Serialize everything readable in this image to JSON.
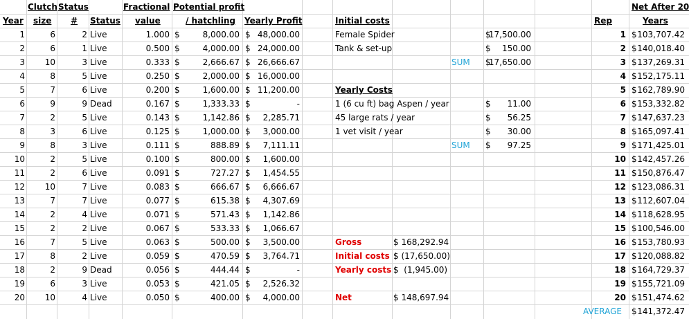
{
  "headers": {
    "year": "Year",
    "clutch_size_1": "Clutch",
    "clutch_size_2": "size",
    "status_num_1": "Status",
    "status_num_2": "#",
    "status": "Status",
    "fractional_1": "Fractional",
    "fractional_2": "value",
    "potential_1": "Potential profit",
    "potential_2": "/ hatchling",
    "yearly_profit": "Yearly Profit",
    "rep": "Rep",
    "net_1": "Net After 20",
    "net_2": "Years"
  },
  "rows": [
    {
      "year": "1",
      "clutch": "6",
      "num": "2",
      "status": "Live",
      "frac": "1.000",
      "pot": "8,000.00",
      "yp": "48,000.00"
    },
    {
      "year": "2",
      "clutch": "6",
      "num": "1",
      "status": "Live",
      "frac": "0.500",
      "pot": "4,000.00",
      "yp": "24,000.00"
    },
    {
      "year": "3",
      "clutch": "10",
      "num": "3",
      "status": "Live",
      "frac": "0.333",
      "pot": "2,666.67",
      "yp": "26,666.67"
    },
    {
      "year": "4",
      "clutch": "8",
      "num": "5",
      "status": "Live",
      "frac": "0.250",
      "pot": "2,000.00",
      "yp": "16,000.00"
    },
    {
      "year": "5",
      "clutch": "7",
      "num": "6",
      "status": "Live",
      "frac": "0.200",
      "pot": "1,600.00",
      "yp": "11,200.00"
    },
    {
      "year": "6",
      "clutch": "9",
      "num": "9",
      "status": "Dead",
      "frac": "0.167",
      "pot": "1,333.33",
      "yp": "-"
    },
    {
      "year": "7",
      "clutch": "2",
      "num": "5",
      "status": "Live",
      "frac": "0.143",
      "pot": "1,142.86",
      "yp": "2,285.71"
    },
    {
      "year": "8",
      "clutch": "3",
      "num": "6",
      "status": "Live",
      "frac": "0.125",
      "pot": "1,000.00",
      "yp": "3,000.00"
    },
    {
      "year": "9",
      "clutch": "8",
      "num": "3",
      "status": "Live",
      "frac": "0.111",
      "pot": "888.89",
      "yp": "7,111.11"
    },
    {
      "year": "10",
      "clutch": "2",
      "num": "5",
      "status": "Live",
      "frac": "0.100",
      "pot": "800.00",
      "yp": "1,600.00"
    },
    {
      "year": "11",
      "clutch": "2",
      "num": "6",
      "status": "Live",
      "frac": "0.091",
      "pot": "727.27",
      "yp": "1,454.55"
    },
    {
      "year": "12",
      "clutch": "10",
      "num": "7",
      "status": "Live",
      "frac": "0.083",
      "pot": "666.67",
      "yp": "6,666.67"
    },
    {
      "year": "13",
      "clutch": "7",
      "num": "7",
      "status": "Live",
      "frac": "0.077",
      "pot": "615.38",
      "yp": "4,307.69"
    },
    {
      "year": "14",
      "clutch": "2",
      "num": "4",
      "status": "Live",
      "frac": "0.071",
      "pot": "571.43",
      "yp": "1,142.86"
    },
    {
      "year": "15",
      "clutch": "2",
      "num": "2",
      "status": "Live",
      "frac": "0.067",
      "pot": "533.33",
      "yp": "1,066.67"
    },
    {
      "year": "16",
      "clutch": "7",
      "num": "5",
      "status": "Live",
      "frac": "0.063",
      "pot": "500.00",
      "yp": "3,500.00"
    },
    {
      "year": "17",
      "clutch": "8",
      "num": "2",
      "status": "Live",
      "frac": "0.059",
      "pot": "470.59",
      "yp": "3,764.71"
    },
    {
      "year": "18",
      "clutch": "2",
      "num": "9",
      "status": "Dead",
      "frac": "0.056",
      "pot": "444.44",
      "yp": "-"
    },
    {
      "year": "19",
      "clutch": "6",
      "num": "3",
      "status": "Live",
      "frac": "0.053",
      "pot": "421.05",
      "yp": "2,526.32"
    },
    {
      "year": "20",
      "clutch": "10",
      "num": "4",
      "status": "Live",
      "frac": "0.050",
      "pot": "400.00",
      "yp": "4,000.00"
    }
  ],
  "currency": "$",
  "initial_costs": {
    "title": "Initial costs",
    "items": [
      {
        "label": "Female Spider",
        "dollar": "$",
        "amount": "17,500.00"
      },
      {
        "label": "Tank & set-up",
        "dollar": "$",
        "amount": "150.00"
      }
    ],
    "sum_label": "SUM",
    "sum_dollar": "$",
    "sum_amount": "17,650.00"
  },
  "yearly_costs": {
    "title": "Yearly Costs",
    "items": [
      {
        "label": "1 (6 cu ft) bag Aspen / year",
        "dollar": "$",
        "amount": "11.00"
      },
      {
        "label": "45 large rats / year",
        "dollar": "$",
        "amount": "56.25"
      },
      {
        "label": "1 vet visit / year",
        "dollar": "$",
        "amount": "30.00"
      }
    ],
    "sum_label": "SUM",
    "sum_dollar": "$",
    "sum_amount": "97.25"
  },
  "summary": {
    "gross_label": "Gross",
    "gross_value": "$ 168,292.94",
    "initial_label": "Initial costs",
    "initial_value": "$ (17,650.00)",
    "yearly_label": "Yearly costs",
    "yearly_value": "$  (1,945.00)",
    "net_label": "Net",
    "net_value": "$ 148,697.94"
  },
  "reps": [
    {
      "rep": "1",
      "net": "103,707.42"
    },
    {
      "rep": "2",
      "net": "140,018.40"
    },
    {
      "rep": "3",
      "net": "137,269.31"
    },
    {
      "rep": "4",
      "net": "152,175.11"
    },
    {
      "rep": "5",
      "net": "162,789.90"
    },
    {
      "rep": "6",
      "net": "153,332.82"
    },
    {
      "rep": "7",
      "net": "147,637.23"
    },
    {
      "rep": "8",
      "net": "165,097.41"
    },
    {
      "rep": "9",
      "net": "171,425.01"
    },
    {
      "rep": "10",
      "net": "142,457.26"
    },
    {
      "rep": "11",
      "net": "150,876.47"
    },
    {
      "rep": "12",
      "net": "123,086.31"
    },
    {
      "rep": "13",
      "net": "112,607.04"
    },
    {
      "rep": "14",
      "net": "118,628.95"
    },
    {
      "rep": "15",
      "net": "100,546.00"
    },
    {
      "rep": "16",
      "net": "153,780.93"
    },
    {
      "rep": "17",
      "net": "120,088.82"
    },
    {
      "rep": "18",
      "net": "164,729.37"
    },
    {
      "rep": "19",
      "net": "155,721.09"
    },
    {
      "rep": "20",
      "net": "151,474.62"
    }
  ],
  "average_label": "AVERAGE",
  "average_value": "141,372.47",
  "colors": {
    "gridline": "#d4d4d4",
    "summary_label_red": "#e00000",
    "sum_label_blue": "#1fa3d6"
  }
}
